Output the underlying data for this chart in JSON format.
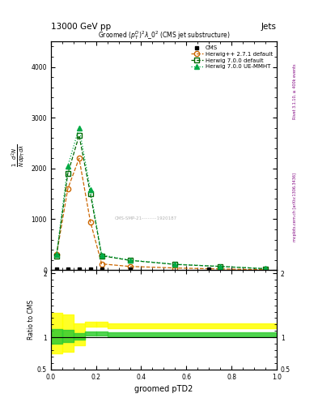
{
  "title_main": "13000 GeV pp",
  "title_right": "Jets",
  "plot_title": "Groomed $(p_T^D)^2\\lambda\\_0^2$ (CMS jet substructure)",
  "right_label_top": "Rivet 3.1.10, ≥ 400k events",
  "right_label_bottom": "mcplots.cern.ch [arXiv:1306.3436]",
  "ylabel_main": "$\\mathregular{\\frac{1}{N}\\frac{d^2N}{dp_T\\,d\\lambda}}$",
  "ylabel_ratio": "Ratio to CMS",
  "xlabel": "groomed pTD2",
  "xlim": [
    0.0,
    1.0
  ],
  "ylim_main": [
    0,
    4500
  ],
  "ylim_ratio": [
    0.5,
    2.05
  ],
  "cms_x": [
    0.025,
    0.075,
    0.125,
    0.175,
    0.225,
    0.35,
    0.7
  ],
  "cms_y": [
    10,
    10,
    10,
    10,
    10,
    10,
    10
  ],
  "cms_color": "#000000",
  "herwig271_x": [
    0.025,
    0.075,
    0.125,
    0.175,
    0.225,
    0.35,
    0.55,
    0.75,
    0.95
  ],
  "herwig271_y": [
    300,
    1600,
    2200,
    950,
    120,
    70,
    40,
    20,
    5
  ],
  "herwig271_color": "#cc6600",
  "herwig700_x": [
    0.025,
    0.075,
    0.125,
    0.175,
    0.225,
    0.35,
    0.55,
    0.75,
    0.95
  ],
  "herwig700_y": [
    280,
    1900,
    2650,
    1500,
    280,
    190,
    110,
    70,
    25
  ],
  "herwig700_color": "#006600",
  "herwigue_x": [
    0.025,
    0.075,
    0.125,
    0.175,
    0.225,
    0.35,
    0.55,
    0.75,
    0.95
  ],
  "herwigue_y": [
    300,
    2050,
    2800,
    1580,
    295,
    195,
    115,
    72,
    28
  ],
  "herwigue_color": "#00aa44",
  "band_yellow_x": [
    0.0,
    0.05,
    0.1,
    0.15,
    0.2,
    0.25,
    1.0
  ],
  "band_yellow_low": [
    0.75,
    0.78,
    0.87,
    1.16,
    1.16,
    1.14,
    1.06
  ],
  "band_yellow_high": [
    1.38,
    1.35,
    1.22,
    1.24,
    1.24,
    1.22,
    1.14
  ],
  "band_green_x": [
    0.0,
    0.05,
    0.1,
    0.15,
    0.2,
    0.25,
    1.0
  ],
  "band_green_low": [
    0.9,
    0.92,
    0.97,
    1.03,
    1.03,
    1.02,
    0.97
  ],
  "band_green_high": [
    1.13,
    1.11,
    1.07,
    1.09,
    1.09,
    1.08,
    1.05
  ],
  "watermark": "CMS-SMP-21-⋯⋯⋯1920187",
  "yticks_main": [
    0,
    1000,
    2000,
    3000,
    4000
  ],
  "yticks_ratio": [
    0.5,
    1.0,
    2.0
  ]
}
